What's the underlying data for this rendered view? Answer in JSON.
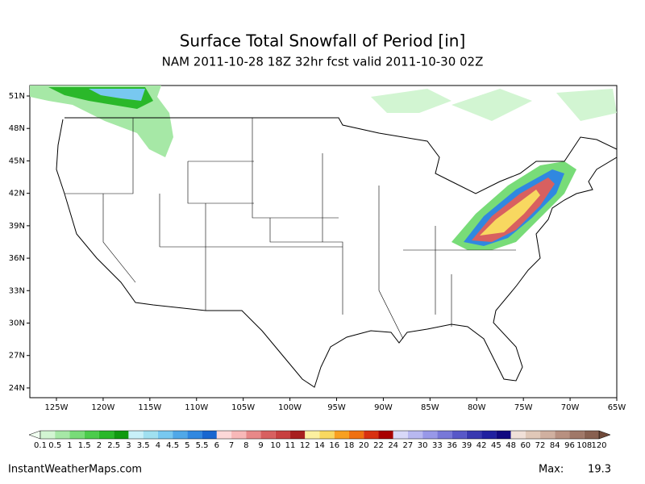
{
  "chart_data": {
    "type": "map",
    "title": "Surface Total Snowfall of Period [in]",
    "subtitle": "NAM 2011-10-28 18Z 32hr fcst valid 2011-10-30 02Z",
    "xlim": [
      -127.85,
      -65
    ],
    "ylim": [
      23.1,
      51.97
    ],
    "yticks": [
      {
        "value": 24,
        "label": "24N"
      },
      {
        "value": 27,
        "label": "27N"
      },
      {
        "value": 30,
        "label": "30N"
      },
      {
        "value": 33,
        "label": "33N"
      },
      {
        "value": 36,
        "label": "36N"
      },
      {
        "value": 39,
        "label": "39N"
      },
      {
        "value": 42,
        "label": "42N"
      },
      {
        "value": 45,
        "label": "45N"
      },
      {
        "value": 48,
        "label": "48N"
      },
      {
        "value": 51,
        "label": "51N"
      }
    ],
    "xticks": [
      {
        "value": -125,
        "label": "125W"
      },
      {
        "value": -120,
        "label": "120W"
      },
      {
        "value": -115,
        "label": "115W"
      },
      {
        "value": -110,
        "label": "110W"
      },
      {
        "value": -105,
        "label": "105W"
      },
      {
        "value": -100,
        "label": "100W"
      },
      {
        "value": -95,
        "label": "95W"
      },
      {
        "value": -90,
        "label": "90W"
      },
      {
        "value": -85,
        "label": "85W"
      },
      {
        "value": -80,
        "label": "80W"
      },
      {
        "value": -75,
        "label": "75W"
      },
      {
        "value": -70,
        "label": "70W"
      },
      {
        "value": -65,
        "label": "65W"
      }
    ],
    "levels": [
      0.1,
      0.5,
      1,
      1.5,
      2,
      2.5,
      3,
      3.5,
      4,
      4.5,
      5,
      5.5,
      6,
      7,
      8,
      9,
      10,
      11,
      12,
      14,
      16,
      18,
      20,
      22,
      24,
      27,
      30,
      33,
      36,
      39,
      42,
      45,
      48,
      60,
      72,
      84,
      96,
      108,
      120
    ],
    "colors": [
      "#d2f5d2",
      "#a6e8a6",
      "#78dc78",
      "#4ccc4c",
      "#2ab82a",
      "#109a10",
      "#c8f0f8",
      "#a0e0f0",
      "#78c8f0",
      "#50a8e8",
      "#3088e0",
      "#1866d0",
      "#fcd8d8",
      "#f8b8b8",
      "#e88888",
      "#d86060",
      "#c84040",
      "#a82020",
      "#fcf0a0",
      "#f8d860",
      "#f8a020",
      "#f07010",
      "#d83010",
      "#a80000",
      "#d8d8f8",
      "#b8b8f0",
      "#9898e8",
      "#7878d8",
      "#5858c8",
      "#3838b0",
      "#2020a0",
      "#100880",
      "#f0e0d8",
      "#e0c8b8",
      "#d0b0a0",
      "#b89080",
      "#a07868",
      "#886050"
    ],
    "under_color": "#f0fff0",
    "over_color": "#704a3a",
    "source": "InstantWeatherMaps.com",
    "max_label": "Max:",
    "max_value": 19.3
  }
}
